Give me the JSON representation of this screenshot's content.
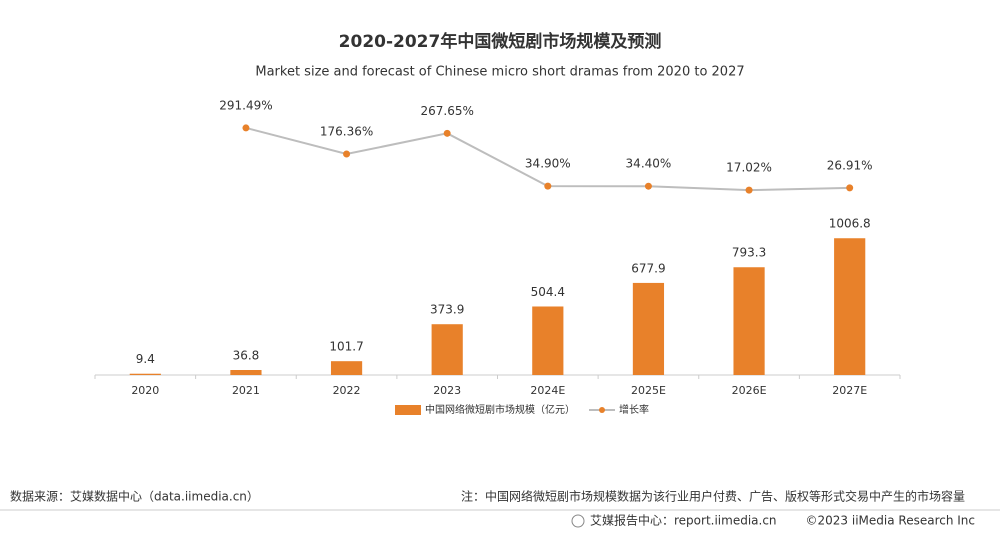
{
  "chart_data": {
    "type": "bar",
    "title": "2020-2027年中国微短剧市场规模及预测",
    "subtitle": "Market size and forecast of Chinese micro short dramas from 2020 to 2027",
    "categories": [
      "2020",
      "2021",
      "2022",
      "2023",
      "2024E",
      "2025E",
      "2026E",
      "2027E"
    ],
    "series": [
      {
        "name": "中国网络微短剧市场规模（亿元）",
        "type": "bar",
        "color": "#e8812a",
        "values": [
          9.4,
          36.8,
          101.7,
          373.9,
          504.4,
          677.9,
          793.3,
          1006.8
        ]
      },
      {
        "name": "增长率",
        "type": "line",
        "axis": "y2",
        "color": "#bdbdbd",
        "marker_color": "#e8812a",
        "values": [
          null,
          291.49,
          176.36,
          267.65,
          34.9,
          34.4,
          17.02,
          26.91
        ],
        "value_labels": [
          null,
          "291.49%",
          "176.36%",
          "267.65%",
          "34.90%",
          "34.40%",
          "17.02%",
          "26.91%"
        ]
      }
    ],
    "ylim": [
      0,
      1200
    ],
    "y2lim": [
      0,
      300
    ],
    "grid": false,
    "legend": "bottom"
  },
  "source": "数据来源：艾媒数据中心（data.iimedia.cn）",
  "note": "注：中国网络微短剧市场规模数据为该行业用户付费、广告、版权等形式交易中产生的市场容量",
  "footer": {
    "site": "艾媒报告中心：report.iimedia.cn",
    "copyright": "©2023  iiMedia Research Inc"
  }
}
